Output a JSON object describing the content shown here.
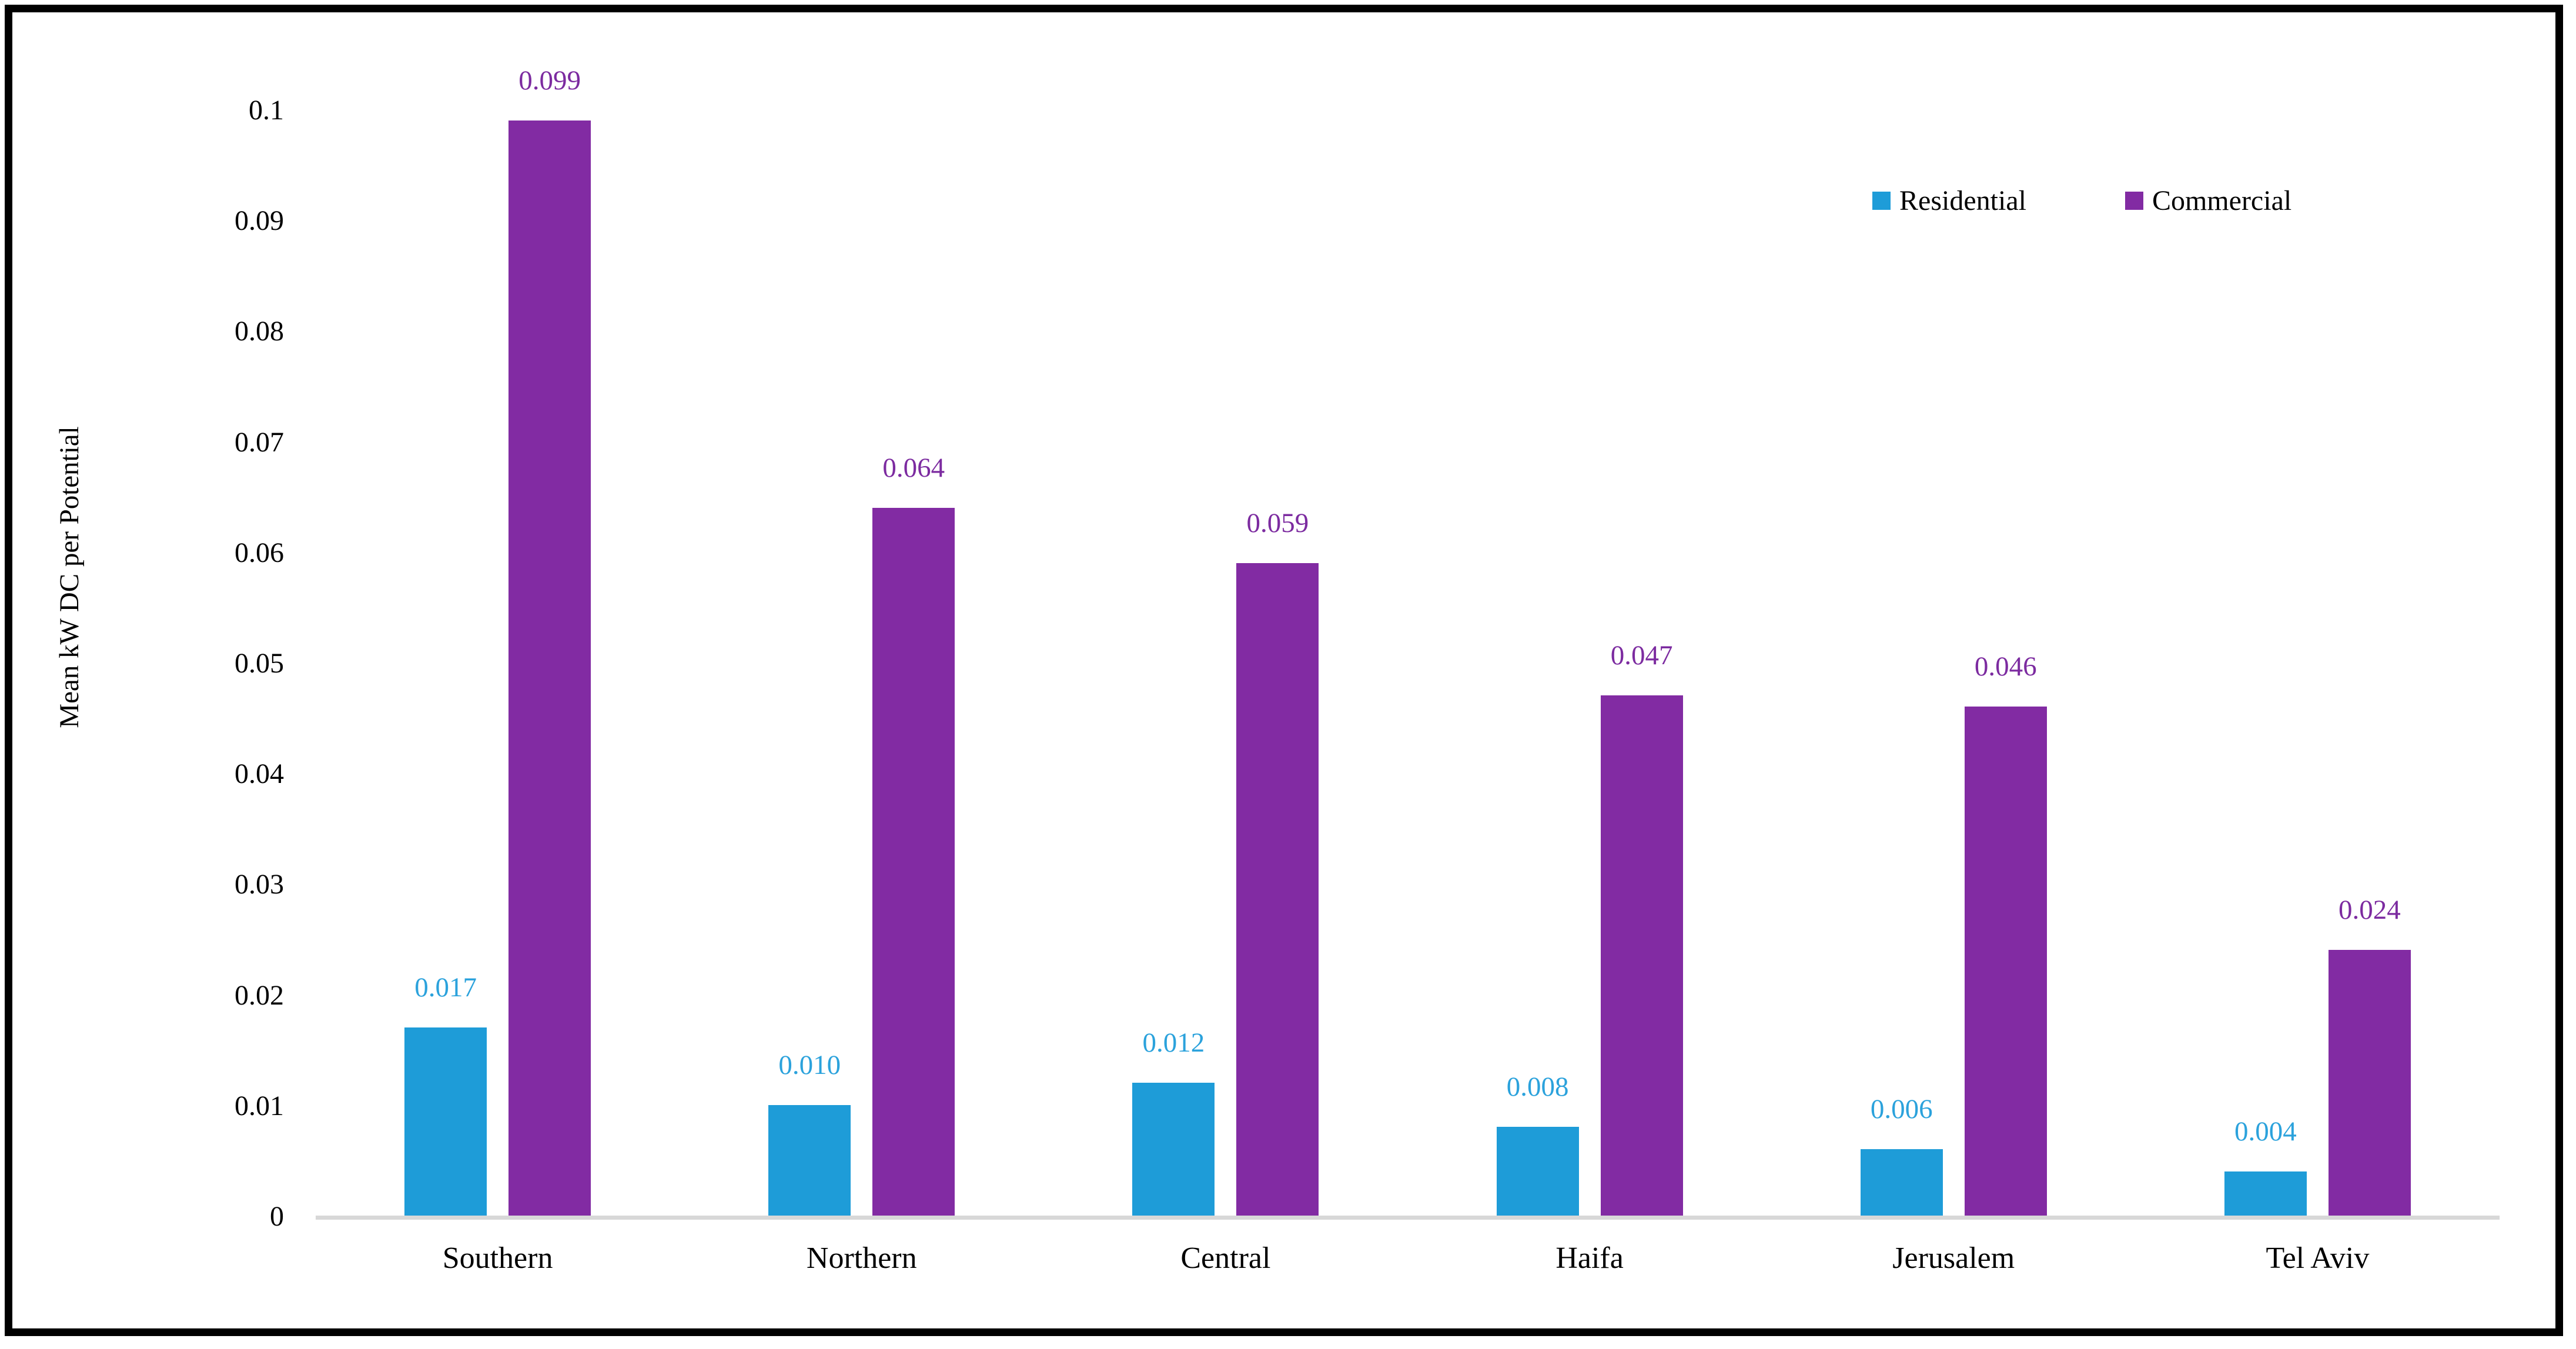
{
  "chart_data": {
    "type": "bar",
    "title": "",
    "categories": [
      "Southern",
      "Northern",
      "Central",
      "Haifa",
      "Jerusalem",
      "Tel Aviv"
    ],
    "series": [
      {
        "name": "Residential",
        "color": "#1E9CD8",
        "label_color": "#2BA2DC",
        "values": [
          0.017,
          0.01,
          0.012,
          0.008,
          0.006,
          0.004
        ],
        "labels": [
          "0.017",
          "0.010",
          "0.012",
          "0.008",
          "0.006",
          "0.004"
        ]
      },
      {
        "name": "Commercial",
        "color": "#822BA3",
        "label_color": "#7C2BA0",
        "values": [
          0.099,
          0.064,
          0.059,
          0.047,
          0.046,
          0.024
        ],
        "labels": [
          "0.099",
          "0.064",
          "0.059",
          "0.047",
          "0.046",
          "0.024"
        ]
      }
    ],
    "xlabel": "",
    "ylabel": "Mean kW DC per Potential",
    "ylim": [
      0,
      0.1
    ],
    "ytick_step": 0.01,
    "yticks": [
      "0",
      "0.01",
      "0.02",
      "0.03",
      "0.04",
      "0.05",
      "0.06",
      "0.07",
      "0.08",
      "0.09",
      "0.1"
    ],
    "grid": false,
    "legend_position": "top-right",
    "axis_line_color": "#D8D8D8",
    "text_color": "#000000",
    "background_color": "#FFFFFF",
    "frame_border_color": "#000000"
  }
}
